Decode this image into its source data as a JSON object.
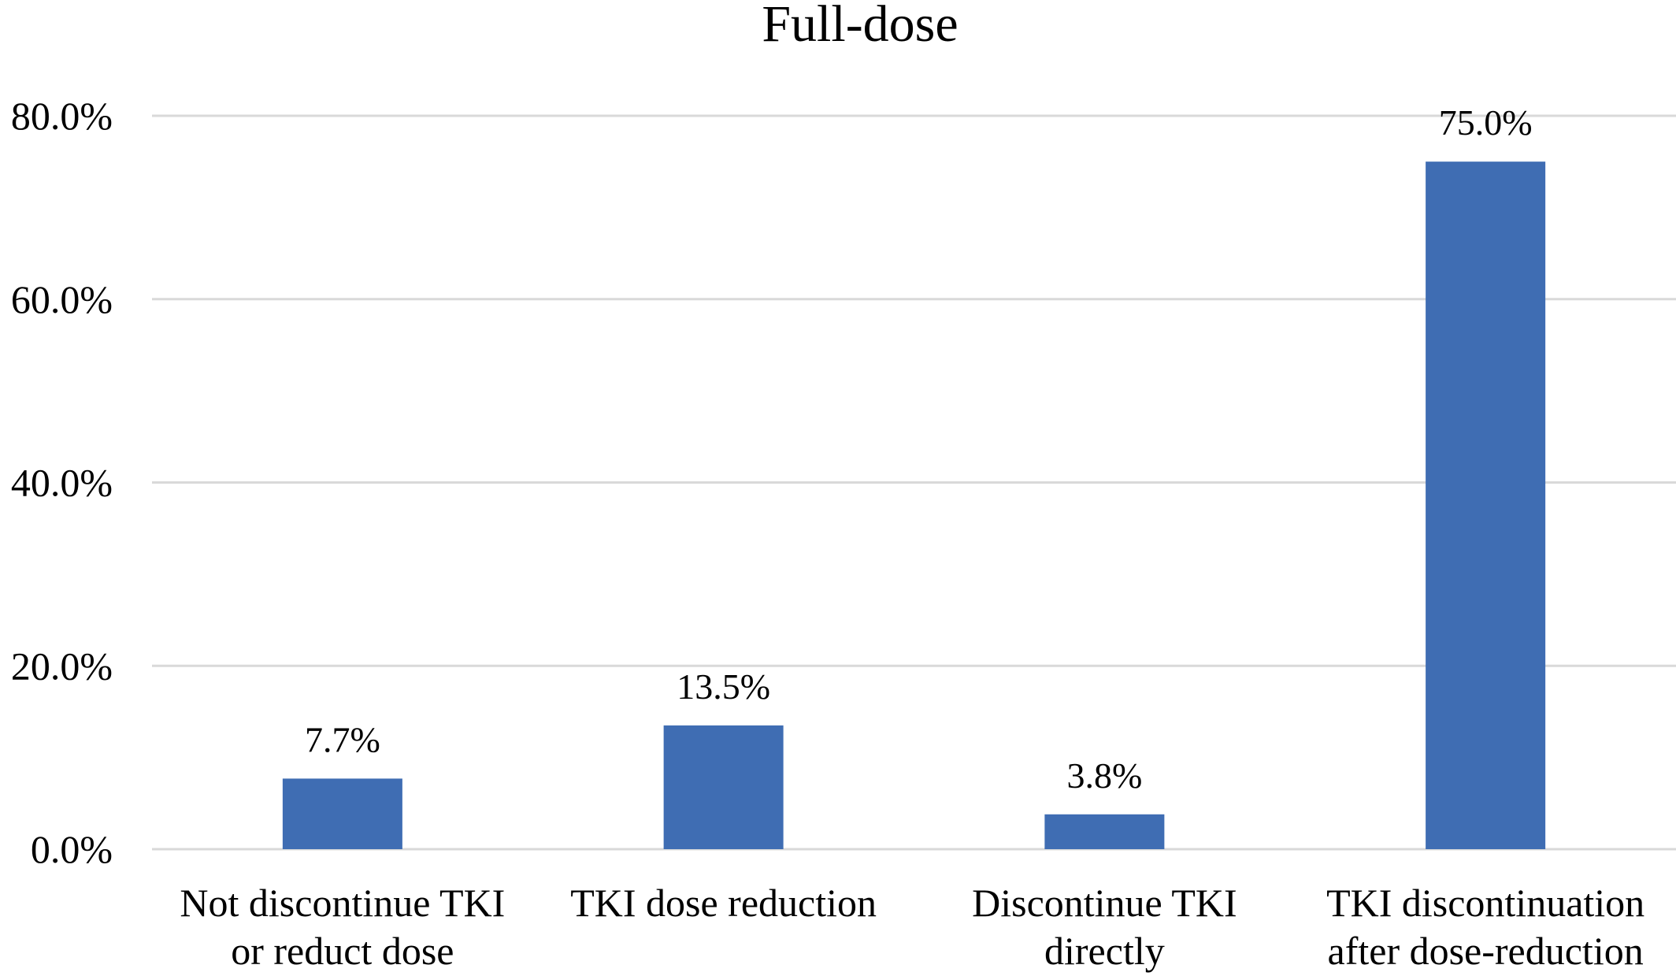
{
  "chart_data": {
    "type": "bar",
    "title": "Full-dose",
    "xlabel": "",
    "ylabel": "",
    "categories": [
      [
        "Not discontinue TKI",
        "or reduct dose"
      ],
      [
        "TKI dose reduction"
      ],
      [
        "Discontinue TKI",
        "directly"
      ],
      [
        "TKI discontinuation",
        "after dose-reduction"
      ]
    ],
    "values": [
      7.7,
      13.5,
      3.8,
      75.0
    ],
    "data_labels": [
      "7.7%",
      "13.5%",
      "3.8%",
      "75.0%"
    ],
    "ylim": [
      0,
      80
    ],
    "yticks": [
      0,
      20,
      40,
      60,
      80
    ],
    "ytick_labels": [
      "0.0%",
      "20.0%",
      "40.0%",
      "60.0%",
      "80.0%"
    ],
    "grid": true,
    "legend": "none",
    "bar_color": "#3f6db3"
  }
}
